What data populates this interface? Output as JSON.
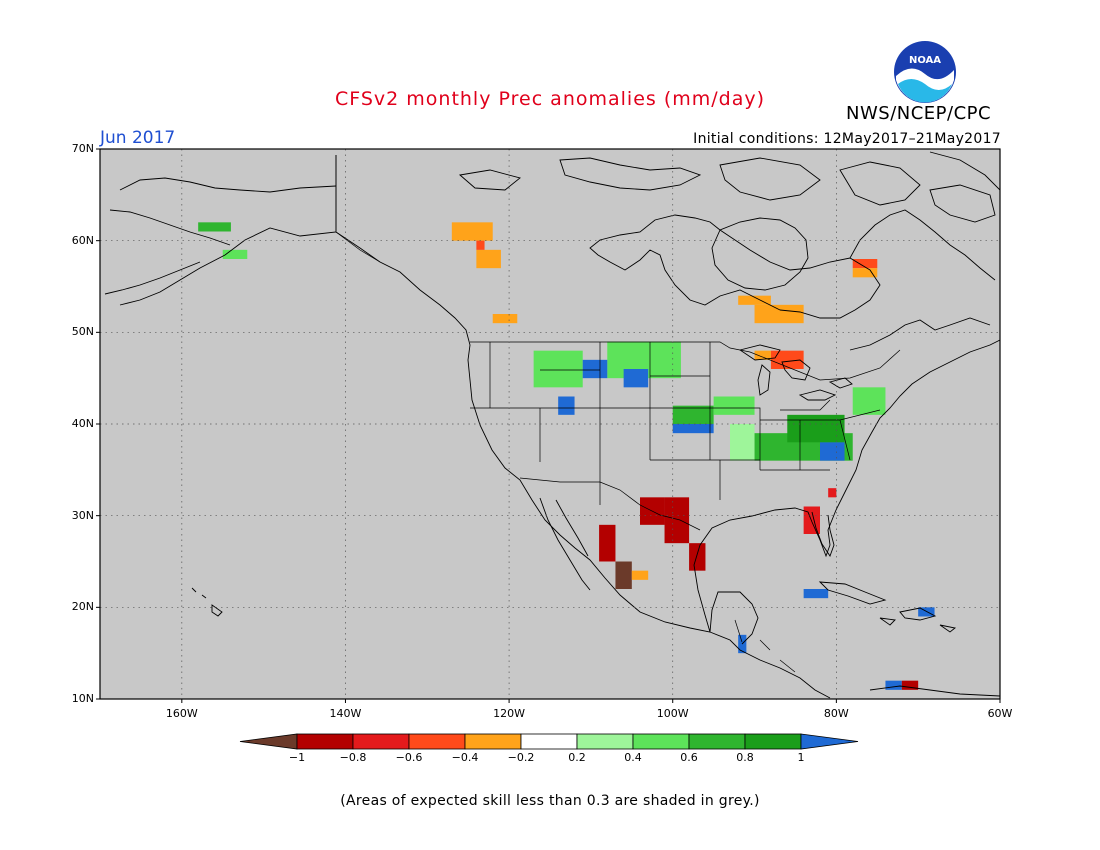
{
  "header": {
    "title": "CFSv2 monthly Prec anomalies (mm/day)",
    "organization": "NWS/NCEP/CPC",
    "logo_text": "NOAA",
    "forecast_month": "Jun 2017",
    "initial_conditions": "Initial conditions: 12May2017–21May2017"
  },
  "map": {
    "projection": "latitude-longitude",
    "lon_range": [
      -170,
      -60
    ],
    "lat_range": [
      10,
      70
    ],
    "background_color": "#c8c8c8",
    "gridlines": "dotted",
    "lat_labels": [
      {
        "lat": 70,
        "label": "70N"
      },
      {
        "lat": 60,
        "label": "60N"
      },
      {
        "lat": 50,
        "label": "50N"
      },
      {
        "lat": 40,
        "label": "40N"
      },
      {
        "lat": 30,
        "label": "30N"
      },
      {
        "lat": 20,
        "label": "20N"
      },
      {
        "lat": 10,
        "label": "10N"
      }
    ],
    "lon_labels": [
      {
        "lon": -160,
        "label": "160W"
      },
      {
        "lon": -140,
        "label": "140W"
      },
      {
        "lon": -120,
        "label": "120W"
      },
      {
        "lon": -100,
        "label": "100W"
      },
      {
        "lon": -80,
        "label": "80W"
      },
      {
        "lon": -60,
        "label": "60W"
      }
    ]
  },
  "colorbar": {
    "thresholds": [
      "−1",
      "−0.8",
      "−0.6",
      "−0.4",
      "−0.2",
      "0.2",
      "0.4",
      "0.6",
      "0.8",
      "1"
    ],
    "colors": [
      "#6b3a2a",
      "#b30000",
      "#e41a1c",
      "#ff4a1a",
      "#ffa31a",
      "#ffffff",
      "#9ef59a",
      "#5de35a",
      "#2fb52f",
      "#1a9e1a",
      "#1f6ad4"
    ]
  },
  "anomaly_cells": [
    {
      "lon": -127,
      "lat": 60,
      "w": 5,
      "h": 2,
      "value": -0.3
    },
    {
      "lon": -124,
      "lat": 57,
      "w": 3,
      "h": 2,
      "value": -0.3
    },
    {
      "lon": -124,
      "lat": 59,
      "w": 1,
      "h": 1,
      "value": -0.5
    },
    {
      "lon": -78,
      "lat": 57,
      "w": 3,
      "h": 1,
      "value": -0.5
    },
    {
      "lon": -78,
      "lat": 56,
      "w": 3,
      "h": 1,
      "value": -0.3
    },
    {
      "lon": -90,
      "lat": 51,
      "w": 6,
      "h": 2,
      "value": -0.3
    },
    {
      "lon": -92,
      "lat": 53,
      "w": 4,
      "h": 1,
      "value": -0.3
    },
    {
      "lon": -88,
      "lat": 46,
      "w": 4,
      "h": 2,
      "value": -0.6
    },
    {
      "lon": -90,
      "lat": 47,
      "w": 2,
      "h": 1,
      "value": -0.4
    },
    {
      "lon": -122,
      "lat": 51,
      "w": 3,
      "h": 1,
      "value": -0.3
    },
    {
      "lon": -117,
      "lat": 44,
      "w": 6,
      "h": 4,
      "value": 0.5
    },
    {
      "lon": -108,
      "lat": 45,
      "w": 9,
      "h": 4,
      "value": 0.5
    },
    {
      "lon": -111,
      "lat": 45,
      "w": 3,
      "h": 2,
      "value": 1.1
    },
    {
      "lon": -106,
      "lat": 44,
      "w": 3,
      "h": 2,
      "value": 1.1
    },
    {
      "lon": -114,
      "lat": 41,
      "w": 2,
      "h": 2,
      "value": 1.1
    },
    {
      "lon": -100,
      "lat": 40,
      "w": 5,
      "h": 2,
      "value": 0.7
    },
    {
      "lon": -100,
      "lat": 39,
      "w": 5,
      "h": 1,
      "value": 1.1
    },
    {
      "lon": -95,
      "lat": 41,
      "w": 5,
      "h": 2,
      "value": 0.5
    },
    {
      "lon": -93,
      "lat": 36,
      "w": 3,
      "h": 4,
      "value": 0.3
    },
    {
      "lon": -90,
      "lat": 36,
      "w": 12,
      "h": 3,
      "value": 0.7
    },
    {
      "lon": -86,
      "lat": 38,
      "w": 7,
      "h": 3,
      "value": 0.9
    },
    {
      "lon": -82,
      "lat": 36,
      "w": 3,
      "h": 2,
      "value": 1.1
    },
    {
      "lon": -78,
      "lat": 41,
      "w": 4,
      "h": 3,
      "value": 0.5
    },
    {
      "lon": -104,
      "lat": 29,
      "w": 3,
      "h": 3,
      "value": -0.9
    },
    {
      "lon": -101,
      "lat": 27,
      "w": 3,
      "h": 5,
      "value": -0.9
    },
    {
      "lon": -98,
      "lat": 24,
      "w": 2,
      "h": 3,
      "value": -0.9
    },
    {
      "lon": -109,
      "lat": 25,
      "w": 2,
      "h": 4,
      "value": -0.9
    },
    {
      "lon": -107,
      "lat": 22,
      "w": 2,
      "h": 3,
      "value": -1.1
    },
    {
      "lon": -105,
      "lat": 23,
      "w": 2,
      "h": 1,
      "value": -0.3
    },
    {
      "lon": -84,
      "lat": 28,
      "w": 2,
      "h": 3,
      "value": -0.7
    },
    {
      "lon": -81,
      "lat": 32,
      "w": 1,
      "h": 1,
      "value": -0.7
    },
    {
      "lon": -84,
      "lat": 21,
      "w": 3,
      "h": 1,
      "value": 1.1
    },
    {
      "lon": -92,
      "lat": 15,
      "w": 1,
      "h": 2,
      "value": 1.1
    },
    {
      "lon": -70,
      "lat": 19,
      "w": 2,
      "h": 1,
      "value": 1.1
    },
    {
      "lon": -74,
      "lat": 11,
      "w": 2,
      "h": 1,
      "value": 1.1
    },
    {
      "lon": -72,
      "lat": 11,
      "w": 2,
      "h": 1,
      "value": -0.9
    },
    {
      "lon": -158,
      "lat": 61,
      "w": 4,
      "h": 1,
      "value": 0.7
    },
    {
      "lon": -155,
      "lat": 58,
      "w": 3,
      "h": 1,
      "value": 0.5
    }
  ],
  "footnote": "(Areas of expected skill less than 0.3 are shaded in grey.)"
}
